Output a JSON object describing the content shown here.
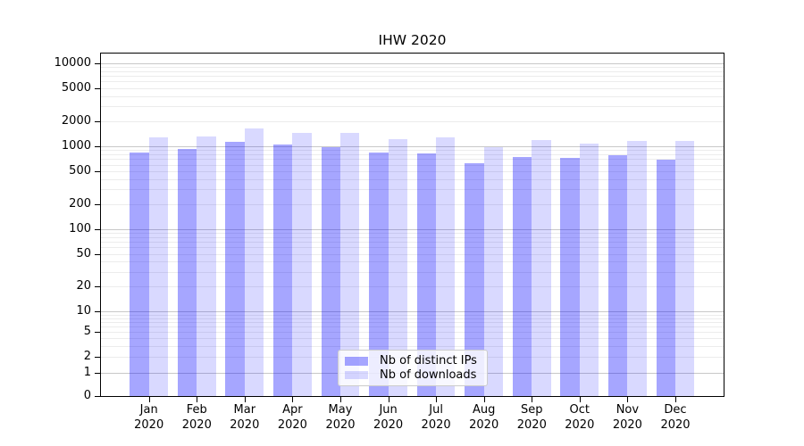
{
  "chart_data": {
    "type": "bar",
    "title": "IHW 2020",
    "yscale": "symlog",
    "ylim": [
      0,
      12000
    ],
    "grid": true,
    "legend_position": "lower center",
    "x_tick_year": "2020",
    "categories": [
      "Jan",
      "Feb",
      "Mar",
      "Apr",
      "May",
      "Jun",
      "Jul",
      "Aug",
      "Sep",
      "Oct",
      "Nov",
      "Dec"
    ],
    "y_ticks": [
      0,
      1,
      2,
      5,
      10,
      20,
      50,
      100,
      200,
      500,
      1000,
      2000,
      5000,
      10000
    ],
    "series": [
      {
        "name": "Nb of distinct IPs",
        "key": "distinct-ips",
        "color": "rgba(0,0,255,0.35)",
        "values": [
          845,
          920,
          1130,
          1050,
          970,
          830,
          810,
          630,
          740,
          720,
          775,
          685
        ]
      },
      {
        "name": "Nb of downloads",
        "key": "downloads",
        "color": "rgba(0,0,255,0.15)",
        "values": [
          1280,
          1310,
          1640,
          1460,
          1440,
          1230,
          1280,
          980,
          1200,
          1080,
          1150,
          1150
        ]
      }
    ],
    "colors": {
      "major_grid": "#c8c8c8",
      "minor_grid": "#ececec",
      "spine": "#000000",
      "text": "#000000"
    }
  }
}
